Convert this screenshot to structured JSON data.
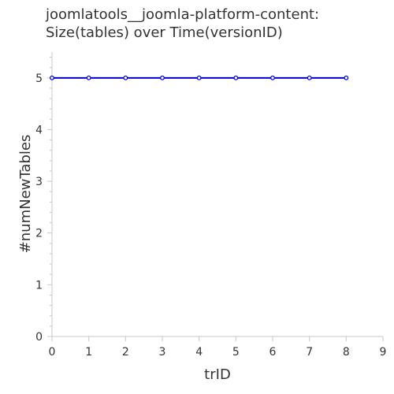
{
  "chart_data": {
    "type": "line",
    "title_lines": [
      "joomlatools__joomla-platform-content:",
      "Size(tables) over Time(versionID)"
    ],
    "xlabel": "trID",
    "ylabel": "#numNewTables",
    "xlim": [
      0,
      9
    ],
    "ylim": [
      0,
      5.5
    ],
    "x_ticks": [
      "0",
      "1",
      "2",
      "3",
      "4",
      "5",
      "6",
      "7",
      "8",
      "9"
    ],
    "y_ticks": [
      "0",
      "1",
      "2",
      "3",
      "4",
      "5"
    ],
    "grid": false,
    "legend": "none",
    "series": [
      {
        "x": [
          0,
          1,
          2,
          3,
          4,
          5,
          6,
          7,
          8
        ],
        "y": [
          5,
          5,
          5,
          5,
          5,
          5,
          5,
          5,
          5
        ],
        "color": "#0000cc"
      }
    ]
  }
}
